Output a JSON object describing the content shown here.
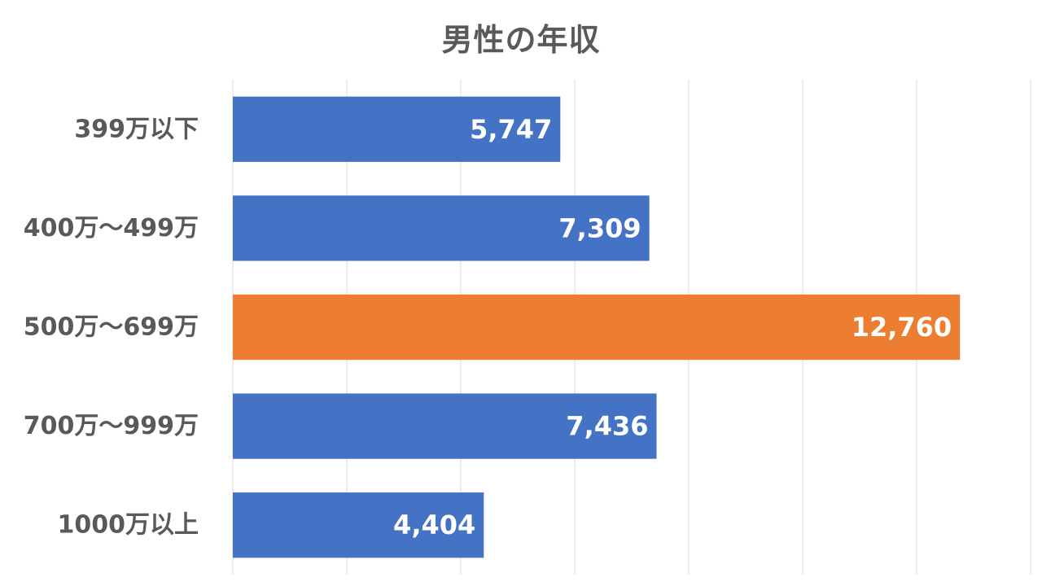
{
  "chart_data": {
    "type": "bar",
    "orientation": "horizontal",
    "title": "男性の年収",
    "categories": [
      "399万以下",
      "400万～499万",
      "500万～699万",
      "700万～999万",
      "1000万以上"
    ],
    "values": [
      5747,
      7309,
      12760,
      7436,
      4404
    ],
    "data_labels": [
      "5,747",
      "7,309",
      "12,760",
      "7,436",
      "4,404"
    ],
    "xlim": [
      0,
      14000
    ],
    "x_gridline_step": 2000,
    "grid": true,
    "highlight_index": 2,
    "colors": {
      "bar": "#4472C4",
      "highlight": "#ED7D31",
      "grid": "#D9D9D9",
      "text": "#595959",
      "data_label": "#FFFFFF"
    }
  }
}
